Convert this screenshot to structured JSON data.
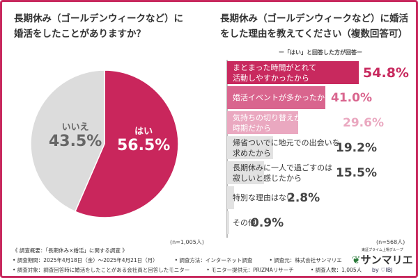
{
  "left": {
    "title_line1": "長期休み（ゴールデンウィークなど）に",
    "title_line2": "婚活をしたことがありますか？",
    "n": "(n=1,005人)"
  },
  "right": {
    "title_line1": "長期休み（ゴールデンウィークなど）に婚活",
    "title_line2": "をした理由を教えてください（複数回答可）",
    "subtitle": "ー「はい」と回答した方が回答ー",
    "n": "(n=568人)"
  },
  "colors": {
    "accent": "#c8295e",
    "pie_yes": "#c9265c",
    "pie_no": "#dcdcdc",
    "bars": [
      "#c8295e",
      "#d9658e",
      "#eaa8c0",
      "#e2e2e2",
      "#e2e2e2",
      "#e2e2e2",
      "#e2e2e2"
    ],
    "values": [
      "#c8295e",
      "#d9658e",
      "#eaa8c0",
      "#444444",
      "#444444",
      "#444444",
      "#444444"
    ]
  },
  "chart_data": [
    {
      "type": "pie",
      "slices": [
        {
          "label": "はい",
          "value": 56.5,
          "text": "56.5%"
        },
        {
          "label": "いいえ",
          "value": 43.5,
          "text": "43.5%"
        }
      ]
    },
    {
      "type": "bar",
      "orientation": "horizontal",
      "categories": [
        "まとまった時間がとれて\n活動しやすかったから",
        "婚活イベントが多かったから",
        "気持ちの切り替えがしやすい\n時期だから",
        "帰省ついでに地元での出会いを\n求めたから",
        "長期休みに一人で過ごすのは\n寂しいと感じたから",
        "特別な理由はない",
        "その他"
      ],
      "values": [
        54.8,
        41.0,
        29.6,
        19.2,
        15.5,
        2.8,
        0.9
      ],
      "labels": [
        "54.8%",
        "41.0%",
        "29.6%",
        "19.2%",
        "15.5%",
        "2.8%",
        "0.9%"
      ]
    }
  ],
  "footer": {
    "heading": "《 調査概要：「長期休み×婚活」に関する調査 》",
    "period": "• 調査期間：2025年4月18日（金）～2025年4月21日（月）",
    "method": "• 調査方法：インターネット調査",
    "source": "• 調査元：株式会社サンマリエ",
    "target": "• 調査対象：調査回答時に婚活をしたことがある会社員と回答したモニター",
    "provider": "• モニター提供元：PRIZMAリサーチ",
    "count": "• 調査人数：1,005人"
  },
  "logo": {
    "group": "東証プライム上場グループ",
    "name": "サンマリエ",
    "by": "by ♡IBJ"
  }
}
